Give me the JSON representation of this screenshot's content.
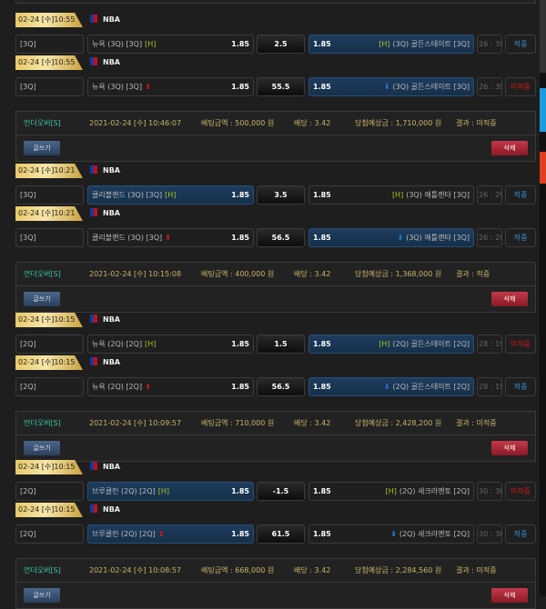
{
  "labels": {
    "write": "글쓰기",
    "delete": "삭제",
    "bet_prefix": "베팅금액 : ",
    "odds_prefix": "배당 : ",
    "expected_prefix": "당첨예상금 : ",
    "result_prefix": "결과 : ",
    "won": " 원",
    "home_marker": "[H]",
    "up_icon": "up-arrow-icon",
    "down_icon": "down-arrow-icon"
  },
  "colors": {
    "gold": "#e8c766",
    "highlight": "#1e3c5e",
    "win": "#3a8fd0",
    "lose": "#d01818",
    "marker": "#a6c421"
  },
  "bets": [
    {
      "rows": [
        {
          "date": "02-24 [수]10:55",
          "league": "NBA",
          "period": "[3Q]",
          "home": "뉴욕 (3Q) [3Q]",
          "home_odds": "1.85",
          "handicap": "2.5",
          "away_odds": "1.85",
          "away": "(3Q) 골든스테이트 [3Q]",
          "time": "26 : 39",
          "result": "적중",
          "win": true,
          "selected": "away",
          "type": "H"
        },
        {
          "date": "02-24 [수]10:55",
          "league": "NBA",
          "period": "[3Q]",
          "home": "뉴욕 (3Q) [3Q]",
          "home_odds": "1.85",
          "handicap": "55.5",
          "away_odds": "1.85",
          "away": "(3Q) 골든스테이트 [3Q]",
          "time": "26 : 39",
          "result": "미적중",
          "win": false,
          "selected": "away",
          "type": "OU"
        }
      ],
      "info": {
        "type": "언더오버[S]",
        "datetime": "2021-02-24 [수] 10:46:07",
        "amount": "500,000",
        "odds": "3.42",
        "expected": "1,710,000",
        "result": "미적중"
      }
    },
    {
      "rows": [
        {
          "date": "02-24 [수]10:21",
          "league": "NBA",
          "period": "[3Q]",
          "home": "클리블랜드 (3Q) [3Q]",
          "home_odds": "1.85",
          "handicap": "3.5",
          "away_odds": "1.85",
          "away": "(3Q) 애틀랜타 [3Q]",
          "time": "26 : 29",
          "result": "적중",
          "win": true,
          "selected": "home",
          "type": "H"
        },
        {
          "date": "02-24 [수]10:21",
          "league": "NBA",
          "period": "[3Q]",
          "home": "클리블랜드 (3Q) [3Q]",
          "home_odds": "1.85",
          "handicap": "56.5",
          "away_odds": "1.85",
          "away": "(3Q) 애틀랜타 [3Q]",
          "time": "26 : 29",
          "result": "적중",
          "win": true,
          "selected": "away",
          "type": "OU"
        }
      ],
      "info": {
        "type": "언더오버[S]",
        "datetime": "2021-02-24 [수] 10:15:08",
        "amount": "400,000",
        "odds": "3.42",
        "expected": "1,368,000",
        "result": "적중"
      }
    },
    {
      "rows": [
        {
          "date": "02-24 [수]10:15",
          "league": "NBA",
          "period": "[2Q]",
          "home": "뉴욕 (2Q) [2Q]",
          "home_odds": "1.85",
          "handicap": "1.5",
          "away_odds": "1.85",
          "away": "(2Q) 골든스테이트 [2Q]",
          "time": "28 : 19",
          "result": "미적중",
          "win": false,
          "selected": "away",
          "type": "H"
        },
        {
          "date": "02-24 [수]10:15",
          "league": "NBA",
          "period": "[2Q]",
          "home": "뉴욕 (2Q) [2Q]",
          "home_odds": "1.85",
          "handicap": "56.5",
          "away_odds": "1.85",
          "away": "(2Q) 골든스테이트 [2Q]",
          "time": "28 : 19",
          "result": "적중",
          "win": true,
          "selected": "away",
          "type": "OU"
        }
      ],
      "info": {
        "type": "언더오버[S]",
        "datetime": "2021-02-24 [수] 10:09:57",
        "amount": "710,000",
        "odds": "3.42",
        "expected": "2,428,200",
        "result": "미적중"
      }
    },
    {
      "rows": [
        {
          "date": "02-24 [수]10:15",
          "league": "NBA",
          "period": "[2Q]",
          "home": "브루클린 (2Q) [2Q]",
          "home_odds": "1.85",
          "handicap": "-1.5",
          "away_odds": "1.85",
          "away": "(2Q) 새크라멘토 [2Q]",
          "time": "30 : 38",
          "result": "미적중",
          "win": false,
          "selected": "home",
          "type": "H"
        },
        {
          "date": "02-24 [수]10:15",
          "league": "NBA",
          "period": "[2Q]",
          "home": "브루클린 (2Q) [2Q]",
          "home_odds": "1.85",
          "handicap": "61.5",
          "away_odds": "1.85",
          "away": "(2Q) 새크라멘토 [2Q]",
          "time": "30 : 38",
          "result": "적중",
          "win": true,
          "selected": "home",
          "type": "OU"
        }
      ],
      "info": {
        "type": "언더오버[S]",
        "datetime": "2021-02-24 [수] 10:08:57",
        "amount": "668,000",
        "odds": "3.42",
        "expected": "2,284,560",
        "result": "미적중"
      }
    }
  ]
}
